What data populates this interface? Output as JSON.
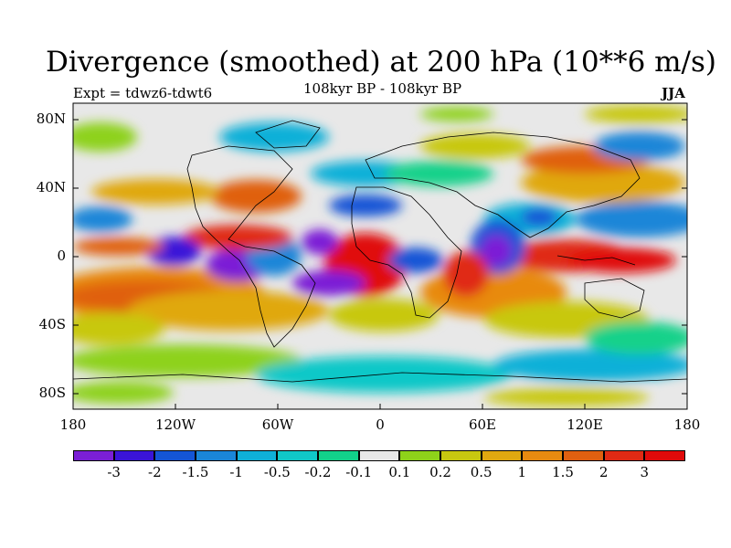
{
  "title": "Divergence (smoothed) at 200 hPa (10**6 m/s)",
  "experiment_label": "Expt = tdwz6-tdwt6",
  "subtitle": "108kyr BP - 108kyr BP",
  "season": "JJA",
  "lat_ticks": [
    "80N",
    "40N",
    "0",
    "40S",
    "80S"
  ],
  "lon_ticks": [
    "180",
    "120W",
    "60W",
    "0",
    "60E",
    "120E",
    "180"
  ],
  "colorbar": {
    "labels": [
      "-3",
      "-2",
      "-1.5",
      "-1",
      "-0.5",
      "-0.2",
      "-0.1",
      "0.1",
      "0.2",
      "0.5",
      "1",
      "1.5",
      "2",
      "3"
    ],
    "colors": [
      "#7b1fd6",
      "#3a14d8",
      "#1455d6",
      "#1a86d8",
      "#0fb0d8",
      "#10c8c8",
      "#12d18a",
      "#e8e8e8",
      "#8ed21a",
      "#c8c810",
      "#e0a810",
      "#e88a10",
      "#e06010",
      "#e02a14",
      "#e00a0a"
    ]
  }
}
